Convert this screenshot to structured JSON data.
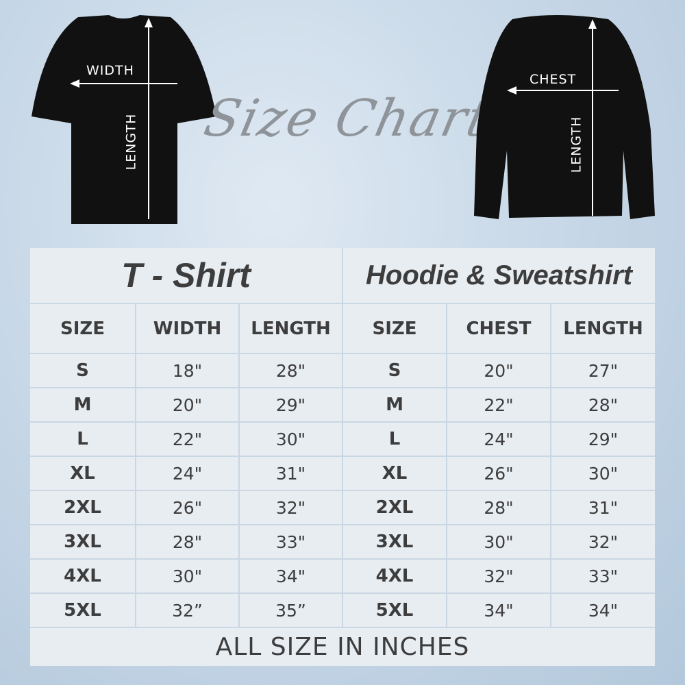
{
  "graphic": {
    "heading": "Size Chart",
    "tshirt_labels": {
      "width": "WIDTH",
      "length": "LENGTH"
    },
    "sweatshirt_labels": {
      "chest": "CHEST",
      "length": "LENGTH"
    }
  },
  "tshirt": {
    "title": "T - Shirt",
    "headers": [
      "SIZE",
      "WIDTH",
      "LENGTH"
    ],
    "rows": [
      [
        "S",
        "18\"",
        "28\""
      ],
      [
        "M",
        "20\"",
        "29\""
      ],
      [
        "L",
        "22\"",
        "30\""
      ],
      [
        "XL",
        "24\"",
        "31\""
      ],
      [
        "2XL",
        "26\"",
        "32\""
      ],
      [
        "3XL",
        "28\"",
        "33\""
      ],
      [
        "4XL",
        "30\"",
        "34\""
      ],
      [
        "5XL",
        "32”",
        "35”"
      ]
    ]
  },
  "hoodie": {
    "title": "Hoodie & Sweatshirt",
    "headers": [
      "SIZE",
      "CHEST",
      "LENGTH"
    ],
    "rows": [
      [
        "S",
        "20\"",
        "27\""
      ],
      [
        "M",
        "22\"",
        "28\""
      ],
      [
        "L",
        "24\"",
        "29\""
      ],
      [
        "XL",
        "26\"",
        "30\""
      ],
      [
        "2XL",
        "28\"",
        "31\""
      ],
      [
        "3XL",
        "30\"",
        "32\""
      ],
      [
        "4XL",
        "32\"",
        "33\""
      ],
      [
        "5XL",
        "34\"",
        "34\""
      ]
    ]
  },
  "footer": "ALL SIZE IN INCHES"
}
